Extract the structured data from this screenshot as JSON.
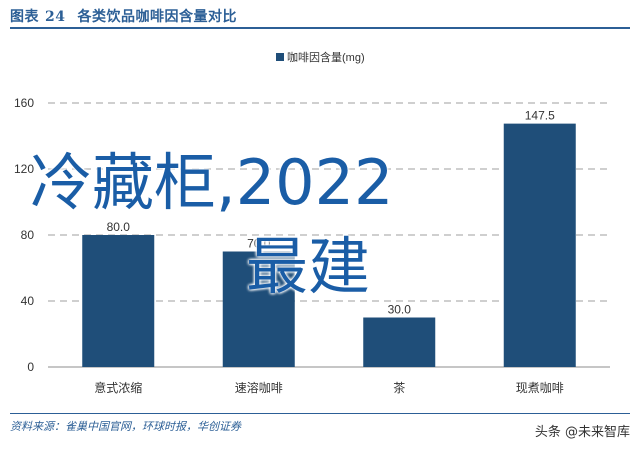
{
  "header": {
    "figure_label": "图表",
    "figure_number": "24",
    "title": "各类饮品咖啡因含量对比"
  },
  "source": "资料来源：雀巢中国官网，环球时报，华创证券",
  "watermark": {
    "line1": "冷藏柜,2022",
    "line2": "最建",
    "bottom": "头条 @未来智库"
  },
  "colors": {
    "bar": "#1f4e79",
    "header": "#2c5f96",
    "grid": "#bfbfbf"
  },
  "chart_data": {
    "type": "bar",
    "categories": [
      "意式浓缩",
      "速溶咖啡",
      "茶",
      "现煮咖啡"
    ],
    "series": [
      {
        "name": "咖啡因含量(mg)",
        "values": [
          80.0,
          70.0,
          30.0,
          147.5
        ]
      }
    ],
    "value_labels": [
      "80.0",
      "70.0",
      "30.0",
      "147.5"
    ],
    "yticks": [
      0,
      40,
      80,
      120,
      160
    ],
    "ylim": [
      0,
      160
    ],
    "legend_position": "top-center",
    "grid": true,
    "grid_style": "dashed"
  }
}
